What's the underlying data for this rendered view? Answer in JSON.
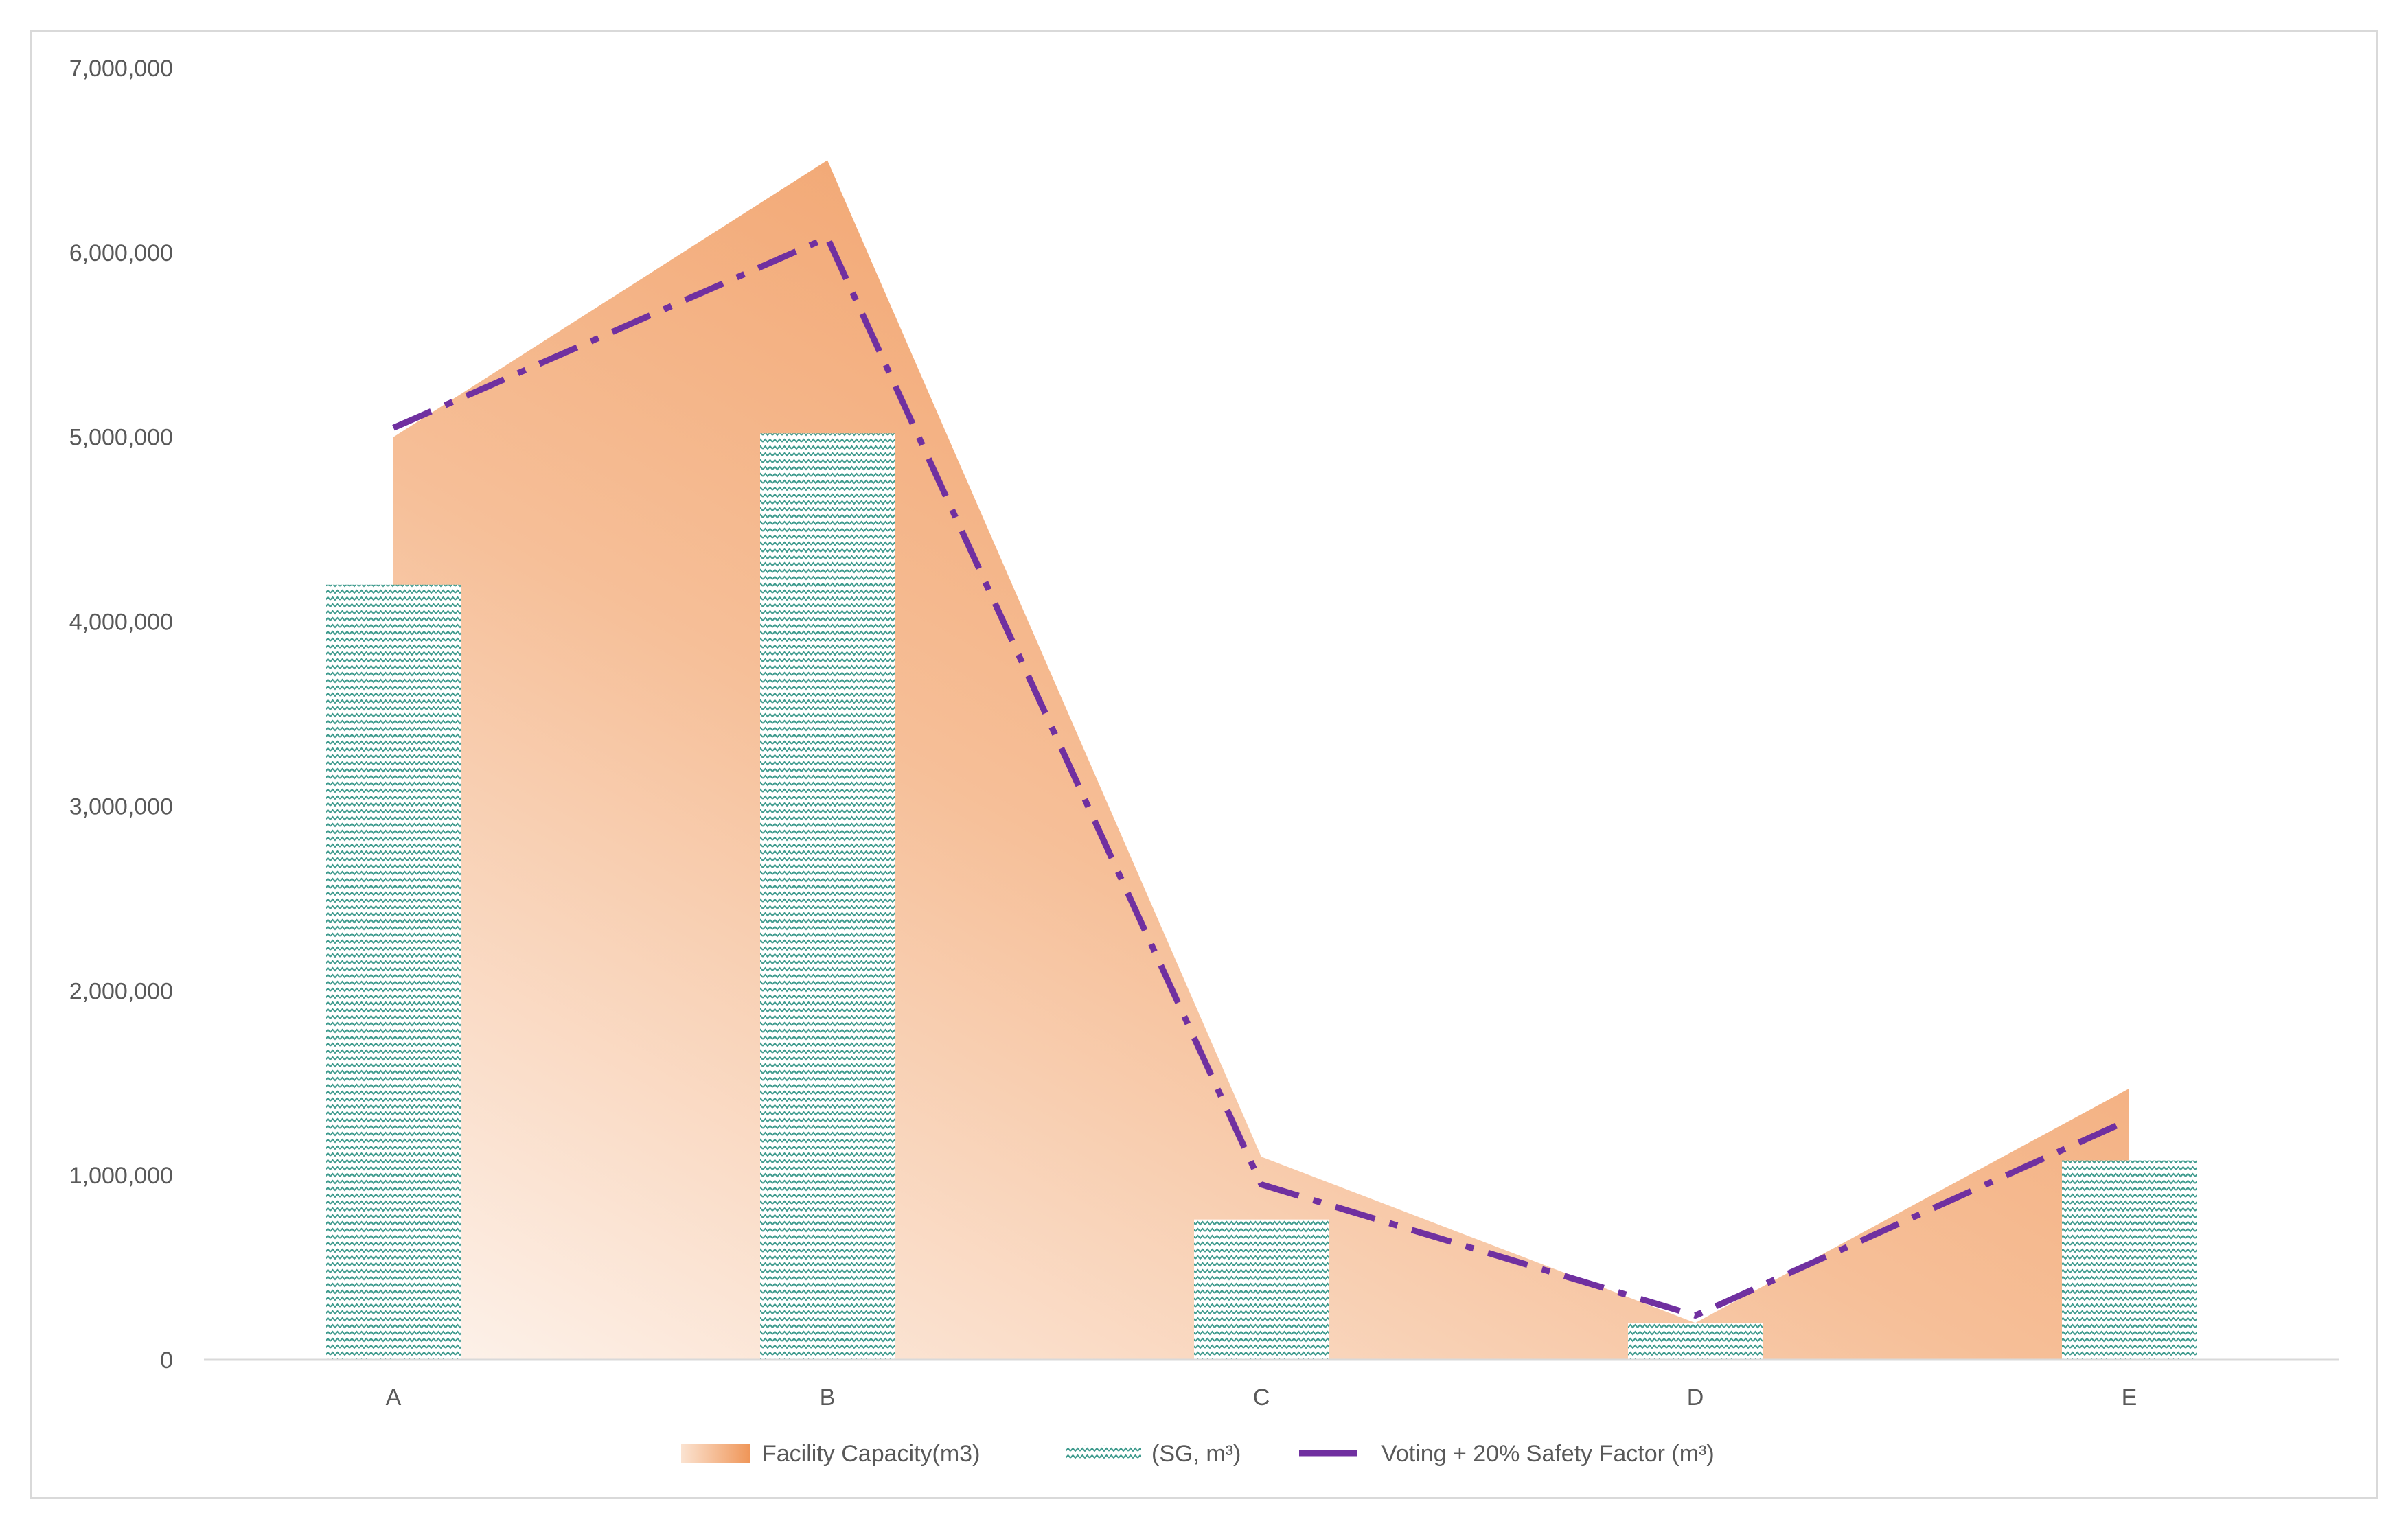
{
  "chart_data": {
    "type": "bar",
    "categories": [
      "A",
      "B",
      "C",
      "D",
      "E"
    ],
    "ylim": [
      0,
      7000000
    ],
    "y_ticks": [
      0,
      1000000,
      2000000,
      3000000,
      4000000,
      5000000,
      6000000,
      7000000
    ],
    "y_tick_labels": [
      "0",
      "1,000,000",
      "2,000,000",
      "3,000,000",
      "4,000,000",
      "5,000,000",
      "6,000,000",
      "7,000,000"
    ],
    "grid": false,
    "legend_position": "bottom",
    "series": [
      {
        "name": "Facility Capacity(m3)",
        "type": "area",
        "color": "#f0a06c",
        "values": [
          5000000,
          6500000,
          1100000,
          200000,
          1470000
        ]
      },
      {
        "name": "(SG, m³)",
        "type": "bar",
        "pattern": "zigzag",
        "color": "#3f9b8e",
        "values": [
          4200000,
          5020000,
          760000,
          200000,
          1080000
        ]
      },
      {
        "name": "Voting + 20% Safety Factor (m³)",
        "type": "line",
        "style": "dash-dot",
        "color": "#7030a0",
        "values": [
          5050000,
          6080000,
          950000,
          240000,
          1300000
        ]
      }
    ]
  }
}
